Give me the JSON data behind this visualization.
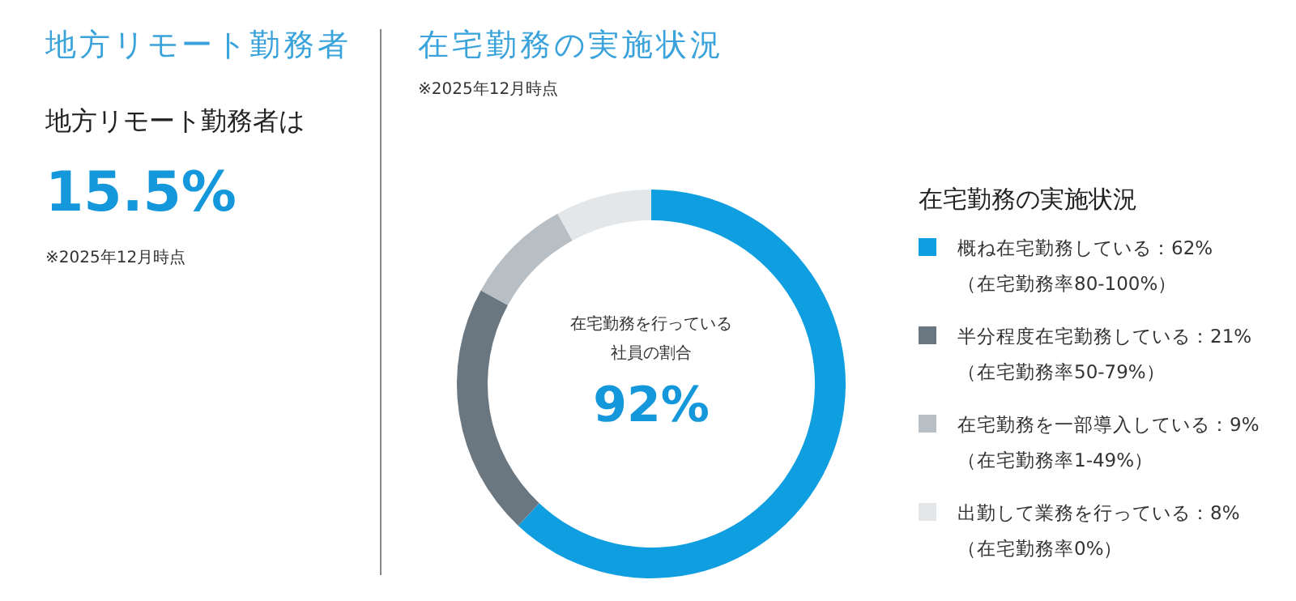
{
  "chart_data": [
    {
      "type": "other",
      "title": "地方リモート勤務者",
      "annotations": [
        "地方リモート勤務者は",
        "15.5%",
        "※2025年12月時点"
      ]
    },
    {
      "type": "donut",
      "title": "在宅勤務の実施状況",
      "subtitle": "※2025年12月時点",
      "legend_title": "在宅勤務の実施状況",
      "legend": "right",
      "categories": [
        "概ね在宅勤務している：62%\n（在宅勤務率80-100%）",
        "半分程度在宅勤務している：21%\n（在宅勤務率50-79%）",
        "在宅勤務を一部導入している：9%\n（在宅勤務率1-49%）",
        "出勤して業務を行っている：8%\n（在宅勤務率0%）"
      ],
      "values": [
        62,
        21,
        9,
        8
      ],
      "colors": [
        "#0f9ee0",
        "#6b7780",
        "#b8bfc4",
        "#e4e7ea"
      ],
      "annotations": [
        "在宅勤務を行っている",
        "社員の割合",
        "92%"
      ]
    }
  ]
}
